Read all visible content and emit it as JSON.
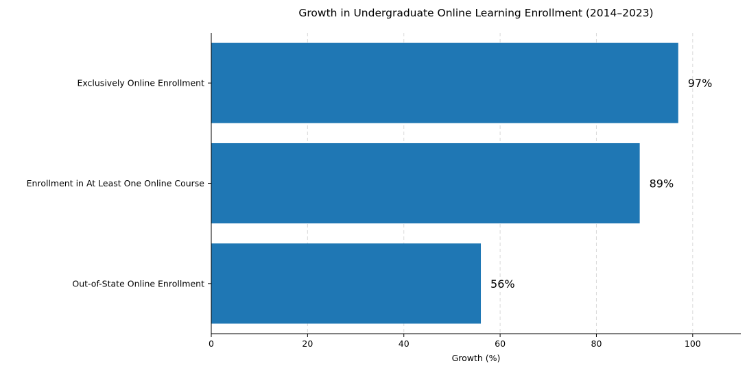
{
  "chart_data": {
    "type": "bar",
    "orientation": "horizontal",
    "title": "Growth in Undergraduate Online Learning Enrollment (2014–2023)",
    "xlabel": "Growth (%)",
    "ylabel": "",
    "categories": [
      "Exclusively Online Enrollment",
      "Enrollment in At Least One Online Course",
      "Out-of-State Online Enrollment"
    ],
    "values": [
      97,
      89,
      56
    ],
    "data_labels": [
      "97%",
      "89%",
      "56%"
    ],
    "xlim": [
      0,
      110
    ],
    "xticks": [
      0,
      20,
      40,
      60,
      80,
      100
    ],
    "xtick_labels": [
      "0",
      "20",
      "40",
      "60",
      "80",
      "100"
    ],
    "grid": "x-dashed",
    "bar_color": "#1f77b4"
  }
}
